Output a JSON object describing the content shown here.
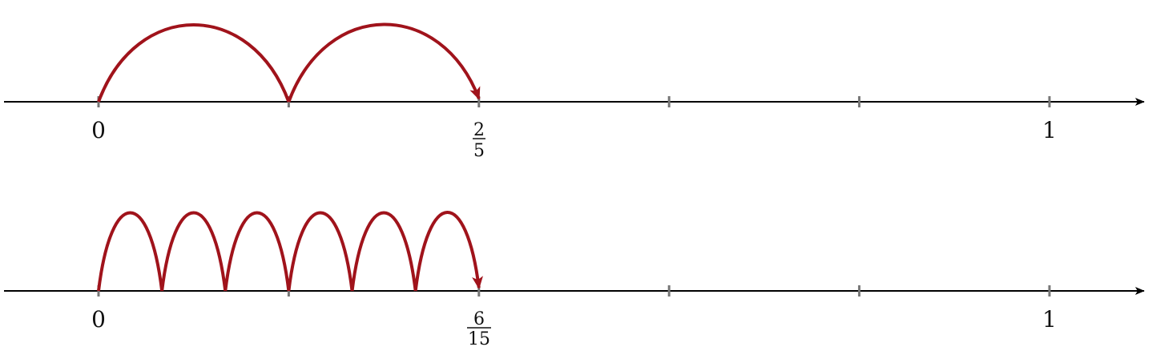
{
  "colors": {
    "axis": "#000000",
    "tick": "#777777",
    "jump": "#a0131b"
  },
  "number_lines": [
    {
      "id": "top",
      "divisions": 5,
      "jumps": 2,
      "labels": {
        "start": "0",
        "end": "1",
        "marked": {
          "num": "2",
          "den": "5",
          "value": 0.4
        }
      }
    },
    {
      "id": "bottom",
      "divisions": 5,
      "jumps": 6,
      "jump_size": "1/15",
      "labels": {
        "start": "0",
        "end": "1",
        "marked": {
          "num": "6",
          "den": "15",
          "value": 0.4
        }
      }
    }
  ]
}
